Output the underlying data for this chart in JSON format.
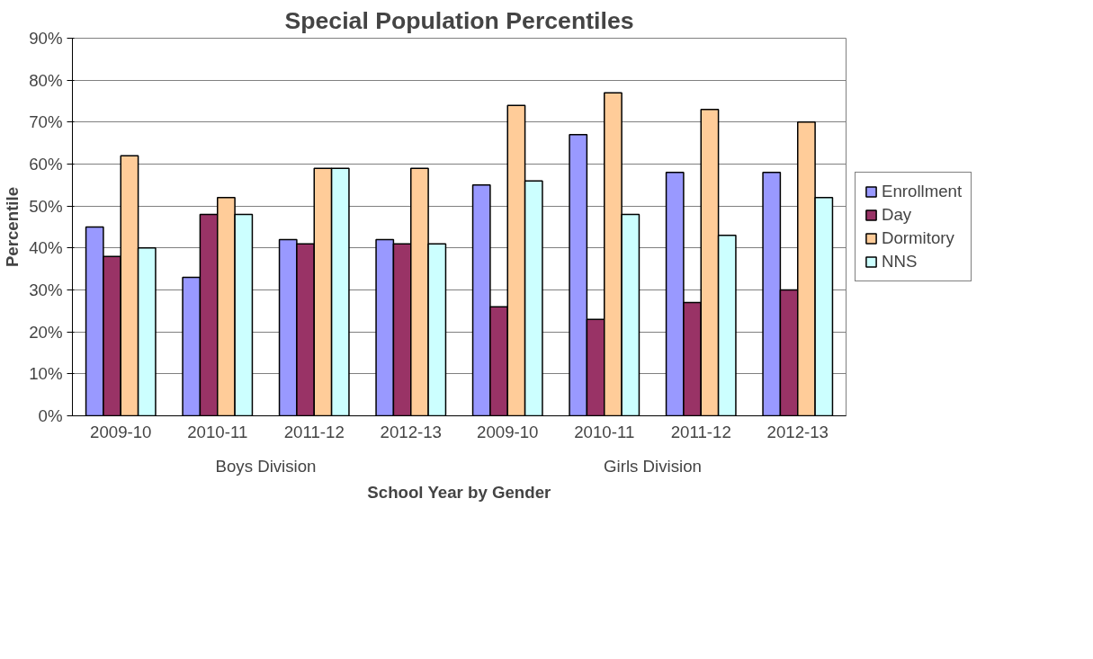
{
  "chart_data": {
    "type": "bar",
    "title": "Special Population Percentiles",
    "xlabel": "School Year by Gender",
    "ylabel": "Percentile",
    "categories": [
      "2009-10",
      "2010-11",
      "2011-12",
      "2012-13",
      "2009-10",
      "2010-11",
      "2011-12",
      "2012-13"
    ],
    "annotations": [
      "Boys Division",
      "Girls Division"
    ],
    "series": [
      {
        "name": "Enrollment",
        "color": "#9999ff",
        "values": [
          45,
          33,
          42,
          42,
          55,
          67,
          58,
          58
        ]
      },
      {
        "name": "Day",
        "color": "#993366",
        "values": [
          38,
          48,
          41,
          41,
          26,
          23,
          27,
          30
        ]
      },
      {
        "name": "Dormitory",
        "color": "#ffcc99",
        "values": [
          62,
          52,
          59,
          59,
          74,
          77,
          73,
          70
        ]
      },
      {
        "name": "NNS",
        "color": "#ccffff",
        "values": [
          40,
          48,
          59,
          41,
          56,
          48,
          43,
          52
        ]
      }
    ],
    "ylim": [
      0,
      90
    ],
    "yticks": [
      {
        "value": 0,
        "label": "0%"
      },
      {
        "value": 10,
        "label": "10%"
      },
      {
        "value": 20,
        "label": "20%"
      },
      {
        "value": 30,
        "label": "30%"
      },
      {
        "value": 40,
        "label": "40%"
      },
      {
        "value": 50,
        "label": "50%"
      },
      {
        "value": 60,
        "label": "60%"
      },
      {
        "value": 70,
        "label": "70%"
      },
      {
        "value": 80,
        "label": "80%"
      },
      {
        "value": 90,
        "label": "90%"
      }
    ],
    "grid": "y",
    "legend": "right"
  }
}
